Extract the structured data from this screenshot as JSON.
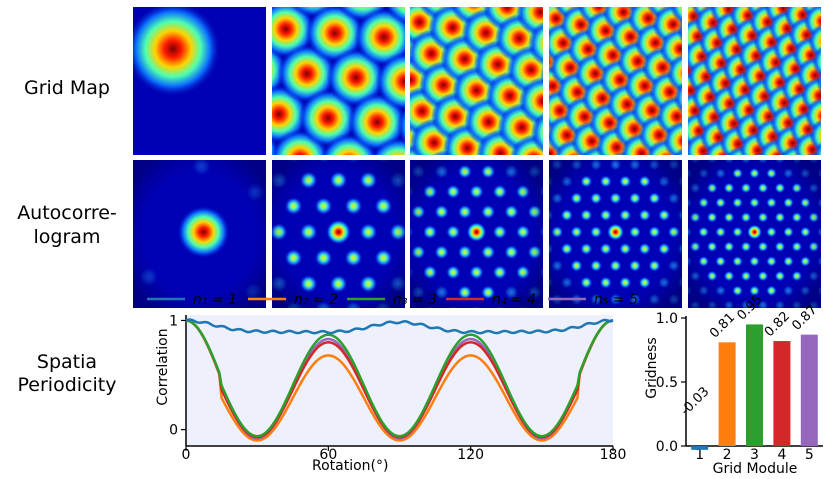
{
  "row_labels": {
    "grid_map": "Grid Map",
    "autocorr_1": "Autocorre-",
    "autocorr_2": "logram",
    "periodicity_1": "Spatia",
    "periodicity_2": "Periodicity"
  },
  "columns": [
    {
      "title": "n₁ = 1",
      "n": 1,
      "color": "#1f77b4"
    },
    {
      "title": "n₂ = 2",
      "n": 2,
      "color": "#ff7f0e"
    },
    {
      "title": "n₃ = 3",
      "n": 3,
      "color": "#2ca02c"
    },
    {
      "title": "n₄ = 4",
      "n": 4,
      "color": "#d62728"
    },
    {
      "title": "n₅ = 5",
      "n": 5,
      "color": "#9467bd"
    }
  ],
  "chart_data": [
    {
      "type": "line",
      "xlabel": "Rotation(°)",
      "ylabel": "Correlation",
      "xlim": [
        0,
        180
      ],
      "ylim": [
        -0.15,
        1.05
      ],
      "xticks": [
        0,
        60,
        120,
        180
      ],
      "yticks": [
        0,
        1
      ],
      "legend": "top",
      "series": [
        {
          "name": "n₁ = 1",
          "color": "#1f77b4",
          "amplitude": 0.11,
          "min": 0.89
        },
        {
          "name": "n₂ = 2",
          "color": "#ff7f0e",
          "amplitude": 1.1,
          "min": -0.1,
          "peak": 0.68
        },
        {
          "name": "n₃ = 3",
          "color": "#2ca02c",
          "amplitude": 1.09,
          "min": -0.06,
          "peak": 0.87
        },
        {
          "name": "n₄ = 4",
          "color": "#d62728",
          "amplitude": 1.08,
          "min": -0.07,
          "peak": 0.8
        },
        {
          "name": "n₅ = 5",
          "color": "#9467bd",
          "amplitude": 1.08,
          "min": -0.08,
          "peak": 0.83
        }
      ]
    },
    {
      "type": "bar",
      "xlabel": "Grid Module",
      "ylabel": "Gridness",
      "categories": [
        "1",
        "2",
        "3",
        "4",
        "5"
      ],
      "values": [
        -0.03,
        0.81,
        0.95,
        0.82,
        0.87
      ],
      "labels": [
        "-0.03",
        "0.81",
        "0.95",
        "0.82",
        "0.87"
      ],
      "colors": [
        "#1f77b4",
        "#ff7f0e",
        "#2ca02c",
        "#d62728",
        "#9467bd"
      ],
      "ylim": [
        0,
        1.0
      ],
      "yticks": [
        "0.0",
        "0.5",
        "1.0"
      ]
    }
  ]
}
